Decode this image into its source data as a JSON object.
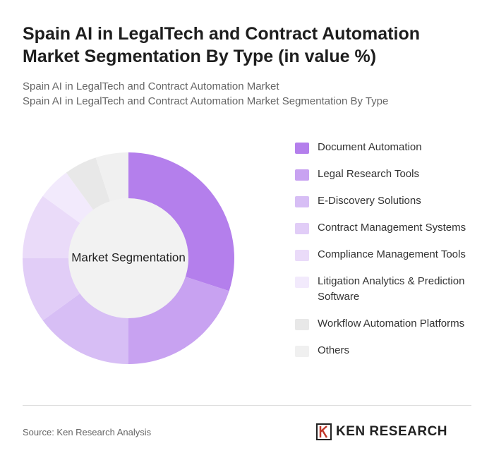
{
  "chart_data": {
    "type": "donut",
    "title": "Spain AI in LegalTech and Contract Automation Market Segmentation By Type (in value %)",
    "subtitle": [
      "Spain AI in LegalTech and Contract Automation Market",
      "Spain AI in LegalTech and Contract Automation Market Segmentation By Type"
    ],
    "center_label": "Market Segmentation",
    "categories": [
      "Document Automation",
      "Legal Research Tools",
      "E-Discovery Solutions",
      "Contract Management Systems",
      "Compliance Management Tools",
      "Litigation Analytics & Prediction Software",
      "Workflow Automation Platforms",
      "Others"
    ],
    "values": [
      30,
      20,
      15,
      10,
      10,
      5,
      5,
      5
    ],
    "colors": [
      "#b47fec",
      "#c8a2f1",
      "#d7bef5",
      "#e1cdf7",
      "#eadbf9",
      "#f2eafc",
      "#e8e8e8",
      "#f0f0f0"
    ],
    "source": "Source: Ken Research Analysis",
    "logo": "KEN RESEARCH"
  }
}
